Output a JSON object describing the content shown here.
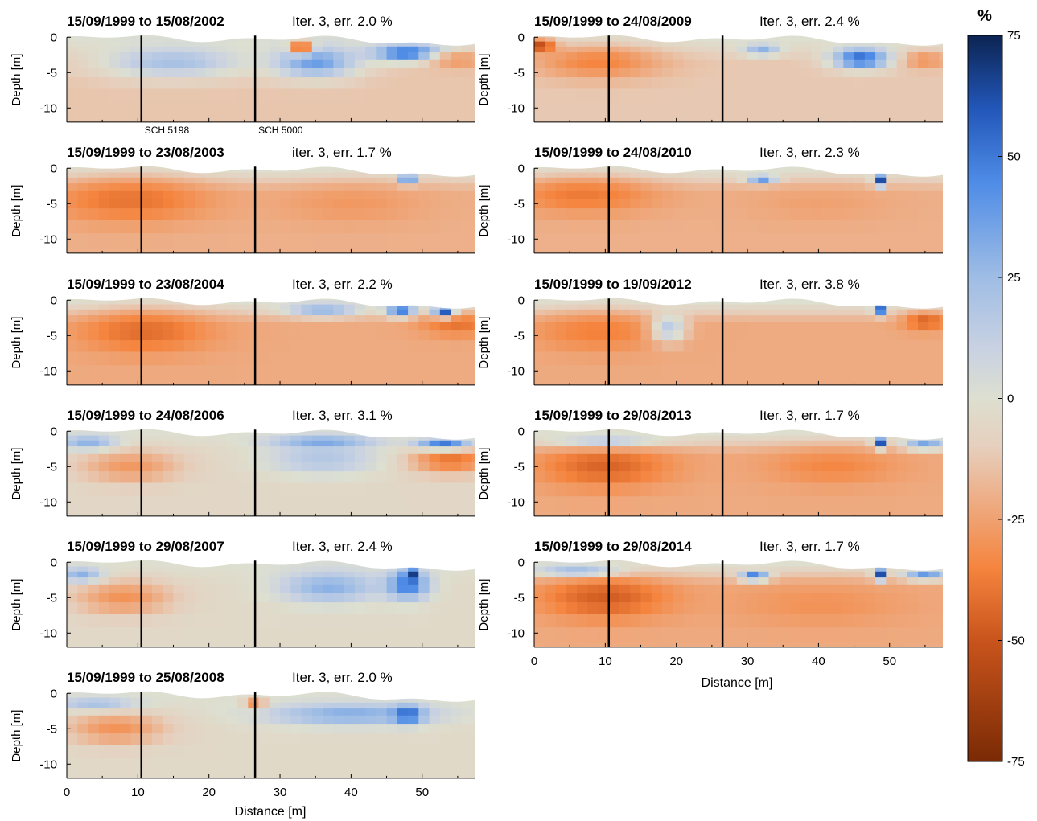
{
  "figure": {
    "depth_label": "Depth [m]",
    "distance_label": "Distance [m]",
    "colorbar": {
      "unit": "%",
      "ticks": [
        75,
        50,
        25,
        0,
        -25,
        -50,
        -75
      ],
      "range": [
        -75,
        75
      ],
      "colormap": [
        {
          "v": -75,
          "color": "#7a2a05"
        },
        {
          "v": -50,
          "color": "#c9541c"
        },
        {
          "v": -35,
          "color": "#f5843e"
        },
        {
          "v": -20,
          "color": "#edb08a"
        },
        {
          "v": -10,
          "color": "#e6cfbd"
        },
        {
          "v": 0,
          "color": "#dddfd0"
        },
        {
          "v": 10,
          "color": "#c9d2e2"
        },
        {
          "v": 25,
          "color": "#9fbde5"
        },
        {
          "v": 45,
          "color": "#4d8be6"
        },
        {
          "v": 60,
          "color": "#2256b8"
        },
        {
          "v": 75,
          "color": "#0c2452"
        }
      ]
    },
    "borehole_labels": [
      "SCH 5198",
      "SCH 5000"
    ]
  },
  "chart_data": {
    "type": "heatmap",
    "xlabel": "Distance [m]",
    "ylabel": "Depth [m]",
    "xlim": [
      0,
      57.5
    ],
    "ylim": [
      -12,
      0.5
    ],
    "xticks": [
      0,
      10,
      20,
      30,
      40,
      50
    ],
    "yticks": [
      0,
      -5,
      -10
    ],
    "value_label": "%",
    "value_range": [
      -75,
      75
    ],
    "boreholes": [
      {
        "name": "SCH 5198",
        "x": 10.5
      },
      {
        "name": "SCH 5000",
        "x": 26.5
      }
    ],
    "panels": [
      {
        "title": "15/09/1999 to 15/08/2002",
        "iteration": "Iter. 3, err. 2.0 %",
        "deep_change": -13,
        "features": [
          {
            "x": 15,
            "z": -3.5,
            "rx": 10,
            "rz": 2.2,
            "v": 22
          },
          {
            "x": 35,
            "z": -3.5,
            "rx": 6,
            "rz": 2.2,
            "v": 38
          },
          {
            "x": 48,
            "z": -2.2,
            "rx": 5,
            "rz": 1.2,
            "v": 55
          },
          {
            "x": 55,
            "z": -3.2,
            "rx": 4,
            "rz": 1.2,
            "v": -28
          },
          {
            "x": 33,
            "z": -1.4,
            "rx": 1.5,
            "rz": 0.9,
            "v": -55
          }
        ]
      },
      {
        "title": "15/09/1999 to 23/08/2003",
        "iteration": "iter. 3, err. 1.7 %",
        "deep_change": -20,
        "features": [
          {
            "x": 9,
            "z": -4.5,
            "rx": 11,
            "rz": 3.2,
            "v": -40
          },
          {
            "x": 40,
            "z": -5,
            "rx": 10,
            "rz": 2.8,
            "v": -28
          },
          {
            "x": 48,
            "z": -1.5,
            "rx": 1,
            "rz": 0.7,
            "v": 70
          }
        ]
      },
      {
        "title": "15/09/1999 to 23/08/2004",
        "iteration": "Iter. 3, err. 2.2 %",
        "deep_change": -22,
        "features": [
          {
            "x": 11,
            "z": -4.5,
            "rx": 9,
            "rz": 3,
            "v": -42
          },
          {
            "x": 55,
            "z": -3.5,
            "rx": 5,
            "rz": 1.6,
            "v": -40
          },
          {
            "x": 36,
            "z": -1.4,
            "rx": 5,
            "rz": 0.9,
            "v": 30
          },
          {
            "x": 47,
            "z": -1.4,
            "rx": 2,
            "rz": 0.9,
            "v": 55
          },
          {
            "x": 53,
            "z": -1.6,
            "rx": 1.5,
            "rz": 0.8,
            "v": 62
          }
        ]
      },
      {
        "title": "15/09/1999 to 24/08/2006",
        "iteration": "Iter. 3, err. 3.1 %",
        "deep_change": -5,
        "features": [
          {
            "x": 9,
            "z": -5,
            "rx": 7,
            "rz": 2.4,
            "v": -28
          },
          {
            "x": 54,
            "z": -4,
            "rx": 6,
            "rz": 2,
            "v": -40
          },
          {
            "x": 36,
            "z": -4,
            "rx": 8,
            "rz": 2.2,
            "v": 18
          },
          {
            "x": 36,
            "z": -1.5,
            "rx": 7,
            "rz": 0.9,
            "v": 35
          },
          {
            "x": 53,
            "z": -1.8,
            "rx": 4,
            "rz": 0.8,
            "v": 50
          },
          {
            "x": 3,
            "z": -1.6,
            "rx": 4,
            "rz": 1,
            "v": 30
          }
        ]
      },
      {
        "title": "15/09/1999 to 29/08/2007",
        "iteration": "Iter. 3, err. 2.4 %",
        "deep_change": -4,
        "features": [
          {
            "x": 8,
            "z": -5,
            "rx": 7,
            "rz": 2.5,
            "v": -30
          },
          {
            "x": 37,
            "z": -3.5,
            "rx": 7,
            "rz": 2.2,
            "v": 30
          },
          {
            "x": 48,
            "z": -3.2,
            "rx": 3,
            "rz": 2,
            "v": 50
          },
          {
            "x": 48.5,
            "z": -1.7,
            "rx": 1,
            "rz": 0.9,
            "v": 70
          },
          {
            "x": 2,
            "z": -1.8,
            "rx": 3,
            "rz": 1,
            "v": 30
          }
        ]
      },
      {
        "title": "15/09/1999 to 25/08/2008",
        "iteration": "Iter. 3, err. 2.0 %",
        "deep_change": -4,
        "features": [
          {
            "x": 7,
            "z": -5,
            "rx": 7,
            "rz": 2.3,
            "v": -30
          },
          {
            "x": 40,
            "z": -3,
            "rx": 12,
            "rz": 1.5,
            "v": 32
          },
          {
            "x": 48,
            "z": -3,
            "rx": 2,
            "rz": 1.2,
            "v": 58
          },
          {
            "x": 4,
            "z": -1.5,
            "rx": 6,
            "rz": 0.9,
            "v": 22
          },
          {
            "x": 26.5,
            "z": -1.4,
            "rx": 1.5,
            "rz": 0.8,
            "v": -35
          }
        ]
      },
      {
        "title": "15/09/1999 to 24/08/2009",
        "iteration": "Iter. 3, err. 2.4 %",
        "deep_change": -12,
        "features": [
          {
            "x": 9,
            "z": -3.5,
            "rx": 9,
            "rz": 2.4,
            "v": -35
          },
          {
            "x": 1,
            "z": -1.2,
            "rx": 2,
            "rz": 1,
            "v": -55
          },
          {
            "x": 46,
            "z": -3,
            "rx": 4,
            "rz": 1.4,
            "v": 55
          },
          {
            "x": 55,
            "z": -3.2,
            "rx": 3,
            "rz": 1.2,
            "v": -30
          },
          {
            "x": 32,
            "z": -1.8,
            "rx": 2.5,
            "rz": 0.8,
            "v": 30
          }
        ]
      },
      {
        "title": "15/09/1999 to 24/08/2010",
        "iteration": "Iter. 3, err. 2.3 %",
        "deep_change": -20,
        "features": [
          {
            "x": 7,
            "z": -3.8,
            "rx": 10,
            "rz": 2.6,
            "v": -38
          },
          {
            "x": 40,
            "z": -5,
            "rx": 10,
            "rz": 2.6,
            "v": -25
          },
          {
            "x": 32,
            "z": -1.6,
            "rx": 2,
            "rz": 0.6,
            "v": 40
          },
          {
            "x": 48.5,
            "z": -1.7,
            "rx": 0.8,
            "rz": 0.9,
            "v": 70
          }
        ]
      },
      {
        "title": "15/09/1999 to 19/09/2012",
        "iteration": "Iter. 3, err. 3.8 %",
        "deep_change": -22,
        "features": [
          {
            "x": 9,
            "z": -4.5,
            "rx": 9,
            "rz": 2.8,
            "v": -36
          },
          {
            "x": 55,
            "z": -3,
            "rx": 3,
            "rz": 1.3,
            "v": -45
          },
          {
            "x": 19,
            "z": -4,
            "rx": 2.5,
            "rz": 2,
            "v": 15
          },
          {
            "x": 48.5,
            "z": -1.3,
            "rx": 0.8,
            "rz": 0.8,
            "v": 70
          }
        ]
      },
      {
        "title": "15/09/1999 to 29/08/2013",
        "iteration": "Iter. 3, err. 1.7 %",
        "deep_change": -22,
        "features": [
          {
            "x": 10,
            "z": -5,
            "rx": 9,
            "rz": 3,
            "v": -45
          },
          {
            "x": 42,
            "z": -5,
            "rx": 9,
            "rz": 2.6,
            "v": -34
          },
          {
            "x": 10,
            "z": -1.4,
            "rx": 8,
            "rz": 0.9,
            "v": 15
          },
          {
            "x": 48.5,
            "z": -1.6,
            "rx": 0.8,
            "rz": 0.8,
            "v": 70
          },
          {
            "x": 55,
            "z": -1.8,
            "rx": 3,
            "rz": 0.8,
            "v": 35
          }
        ]
      },
      {
        "title": "15/09/1999 to 29/08/2014",
        "iteration": "Iter. 3, err. 1.7 %",
        "deep_change": -22,
        "features": [
          {
            "x": 10,
            "z": -5,
            "rx": 9,
            "rz": 3,
            "v": -47
          },
          {
            "x": 40,
            "z": -6,
            "rx": 12,
            "rz": 3,
            "v": -30
          },
          {
            "x": 6,
            "z": -1.2,
            "rx": 6,
            "rz": 0.8,
            "v": 25
          },
          {
            "x": 31,
            "z": -2,
            "rx": 2,
            "rz": 0.6,
            "v": 60
          },
          {
            "x": 48.5,
            "z": -1.7,
            "rx": 0.8,
            "rz": 0.9,
            "v": 70
          },
          {
            "x": 55,
            "z": -1.8,
            "rx": 3,
            "rz": 0.7,
            "v": 40
          }
        ]
      }
    ]
  }
}
